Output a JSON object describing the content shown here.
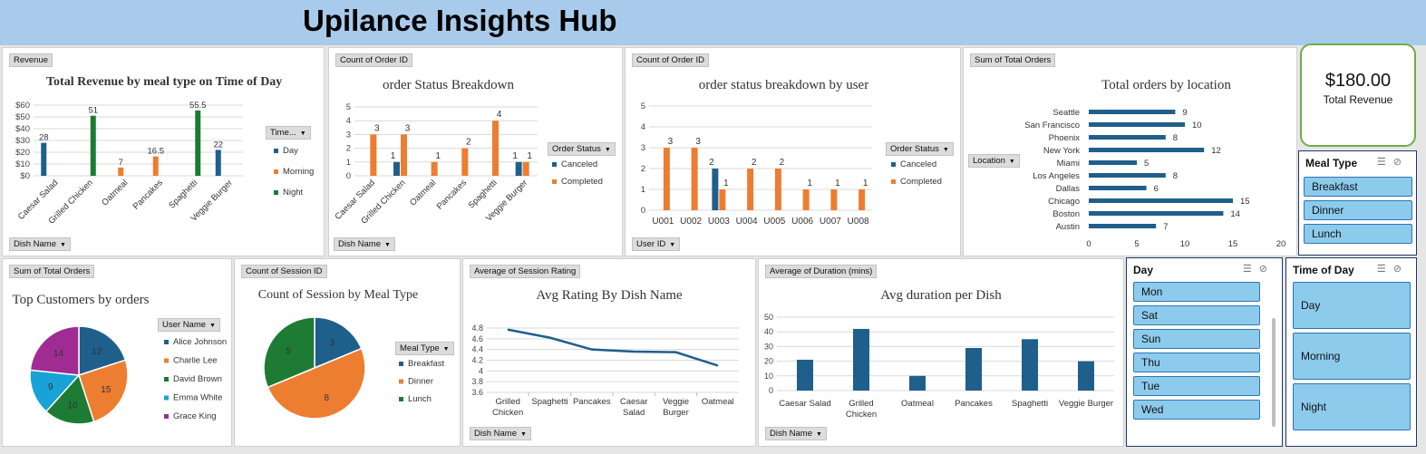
{
  "header": {
    "title": "Upilance Insights Hub"
  },
  "kpi": {
    "value": "$180.00",
    "label": "Total Revenue"
  },
  "slicers": {
    "meal_type": {
      "title": "Meal Type",
      "items": [
        "Breakfast",
        "Dinner",
        "Lunch"
      ]
    },
    "day": {
      "title": "Day",
      "items": [
        "Mon",
        "Sat",
        "Sun",
        "Thu",
        "Tue",
        "Wed"
      ]
    },
    "time_of_day": {
      "title": "Time of Day",
      "items": [
        "Day",
        "Morning",
        "Night"
      ]
    }
  },
  "colors": {
    "blue": "#1f5f8b",
    "orange": "#ed7d31",
    "green": "#1e7b34",
    "cyan": "#17a2d8",
    "purple": "#a02b93",
    "kpi_border": "#70ad47",
    "banner": "#a9cbeb",
    "slicer_item": "#8dcbed"
  },
  "panels": {
    "revenue": {
      "field_btn": "Revenue",
      "axis_btn": "Dish Name",
      "legend_btn": "Time..."
    },
    "status": {
      "field_btn": "Count of Order ID",
      "axis_btn": "Dish Name",
      "legend_btn": "Order Status"
    },
    "status_user": {
      "field_btn": "Count of Order ID",
      "axis_btn": "User ID",
      "legend_btn": "Order Status"
    },
    "location": {
      "field_btn": "Sum of Total Orders",
      "axis_btn": "Location"
    },
    "customers": {
      "field_btn": "Sum of Total Orders",
      "legend_btn": "User Name"
    },
    "sessions": {
      "field_btn": "Count of Session ID",
      "legend_btn": "Meal Type"
    },
    "rating": {
      "field_btn": "Average of Session Rating",
      "axis_btn": "Dish Name"
    },
    "duration": {
      "field_btn": "Average of Duration (mins)",
      "axis_btn": "Dish Name"
    }
  },
  "chart_data": [
    {
      "id": "revenue",
      "type": "bar",
      "title": "Total Revenue by meal type on Time of Day",
      "categories": [
        "Caesar Salad",
        "Grilled Chicken",
        "Oatmeal",
        "Pancakes",
        "Spaghetti",
        "Veggie Burger"
      ],
      "series": [
        {
          "name": "Day",
          "values": [
            28,
            null,
            null,
            null,
            null,
            22
          ]
        },
        {
          "name": "Morning",
          "values": [
            null,
            null,
            7,
            16.5,
            null,
            null
          ]
        },
        {
          "name": "Night",
          "values": [
            null,
            51,
            null,
            null,
            55.5,
            null
          ]
        }
      ],
      "data_labels": [
        "28",
        "51",
        "7",
        "16.5",
        "55.5",
        "22"
      ],
      "ylim": [
        0,
        60
      ],
      "yticks": [
        "$0",
        "$10",
        "$20",
        "$30",
        "$40",
        "$50",
        "$60"
      ],
      "grid": true,
      "legend": "right"
    },
    {
      "id": "status",
      "type": "bar",
      "title": "order Status Breakdown",
      "categories": [
        "Caesar Salad",
        "Grilled Chicken",
        "Oatmeal",
        "Pancakes",
        "Spaghetti",
        "Veggie Burger"
      ],
      "series": [
        {
          "name": "Canceled",
          "values": [
            null,
            1,
            null,
            null,
            null,
            1
          ]
        },
        {
          "name": "Completed",
          "values": [
            3,
            3,
            1,
            2,
            4,
            1
          ]
        }
      ],
      "data_labels": [
        "3",
        "3",
        "1",
        "2",
        "4",
        "1"
      ],
      "ylim": [
        0,
        5
      ],
      "yticks": [
        "0",
        "1",
        "2",
        "3",
        "4",
        "5"
      ],
      "grid": true,
      "legend": "right"
    },
    {
      "id": "status_user",
      "type": "bar",
      "title": "order status breakdown by user",
      "categories": [
        "U001",
        "U002",
        "U003",
        "U004",
        "U005",
        "U006",
        "U007",
        "U008"
      ],
      "series": [
        {
          "name": "Canceled",
          "values": [
            null,
            null,
            2,
            null,
            null,
            null,
            null,
            null
          ]
        },
        {
          "name": "Completed",
          "values": [
            3,
            3,
            1,
            2,
            2,
            1,
            1,
            1
          ]
        }
      ],
      "data_labels": [
        "3",
        "3",
        "2",
        "1",
        "2",
        "2",
        "1",
        "1",
        "1"
      ],
      "ylim": [
        0,
        5
      ],
      "yticks": [
        "0",
        "1",
        "2",
        "3",
        "4",
        "5"
      ],
      "grid": true,
      "legend": "right"
    },
    {
      "id": "location",
      "type": "bar",
      "title": "Total orders by location",
      "categories": [
        "Seattle",
        "San Francisco",
        "Phoenix",
        "New York",
        "Miami",
        "Los Angeles",
        "Dallas",
        "Chicago",
        "Boston",
        "Austin"
      ],
      "values": [
        9,
        10,
        8,
        12,
        5,
        8,
        6,
        15,
        14,
        7
      ],
      "xlim": [
        0,
        20
      ],
      "xticks": [
        "0",
        "5",
        "10",
        "15",
        "20"
      ],
      "orientation": "horizontal"
    },
    {
      "id": "customers",
      "type": "pie",
      "title": "Top Customers by orders",
      "labels": [
        "Alice Johnson",
        "Charlie Lee",
        "David Brown",
        "Emma White",
        "Grace King"
      ],
      "values": [
        12,
        15,
        10,
        9,
        14
      ],
      "data_labels": [
        "12",
        "15",
        "10",
        "9",
        "14"
      ],
      "legend": "right"
    },
    {
      "id": "sessions",
      "type": "pie",
      "title": "Count of Session by Meal Type",
      "labels": [
        "Breakfast",
        "Dinner",
        "Lunch"
      ],
      "values": [
        3,
        8,
        5
      ],
      "data_labels": [
        "3",
        "8",
        "5"
      ],
      "legend": "right"
    },
    {
      "id": "rating",
      "type": "line",
      "title": "Avg Rating By Dish Name",
      "categories": [
        "Grilled Chicken",
        "Spaghetti",
        "Pancakes",
        "Caesar Salad",
        "Veggie Burger",
        "Oatmeal"
      ],
      "values": [
        4.77,
        4.62,
        4.4,
        4.36,
        4.35,
        4.1
      ],
      "ylim": [
        3.6,
        4.8
      ],
      "yticks": [
        "3.6",
        "3.8",
        "4",
        "4.2",
        "4.4",
        "4.6",
        "4.8"
      ],
      "grid": true
    },
    {
      "id": "duration",
      "type": "bar",
      "title": "Avg duration per Dish",
      "categories": [
        "Caesar Salad",
        "Grilled Chicken",
        "Oatmeal",
        "Pancakes",
        "Spaghetti",
        "Veggie Burger"
      ],
      "values": [
        21,
        42,
        10,
        29,
        35,
        20
      ],
      "ylim": [
        0,
        50
      ],
      "yticks": [
        "0",
        "10",
        "20",
        "30",
        "40",
        "50"
      ],
      "grid": true
    }
  ]
}
